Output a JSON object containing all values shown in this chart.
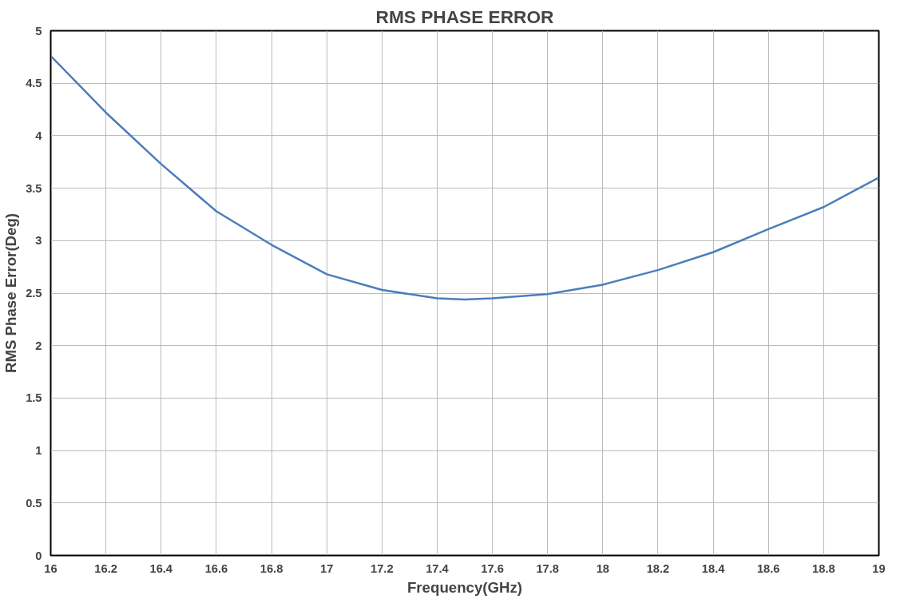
{
  "chart_data": {
    "type": "line",
    "title": "RMS PHASE ERROR",
    "xlabel": "Frequency(GHz)",
    "ylabel": "RMS Phase Error(Deg)",
    "x": [
      16,
      16.2,
      16.4,
      16.6,
      16.8,
      17,
      17.2,
      17.4,
      17.5,
      17.6,
      17.8,
      18,
      18.2,
      18.4,
      18.6,
      18.8,
      19
    ],
    "series": [
      {
        "color": "#4a7ebb",
        "values": [
          4.76,
          4.22,
          3.73,
          3.28,
          2.96,
          2.68,
          2.53,
          2.45,
          2.44,
          2.45,
          2.49,
          2.58,
          2.72,
          2.89,
          3.11,
          3.32,
          3.6
        ]
      }
    ],
    "xlim": [
      16,
      19
    ],
    "xticks": [
      16,
      16.2,
      16.4,
      16.6,
      16.8,
      17,
      17.2,
      17.4,
      17.6,
      17.8,
      18,
      18.2,
      18.4,
      18.6,
      18.8,
      19
    ],
    "ylim": [
      0,
      5
    ],
    "yticks": [
      0,
      0.5,
      1,
      1.5,
      2,
      2.5,
      3,
      3.5,
      4,
      4.5,
      5
    ],
    "grid": true,
    "marker": "none",
    "line_style": "solid"
  }
}
